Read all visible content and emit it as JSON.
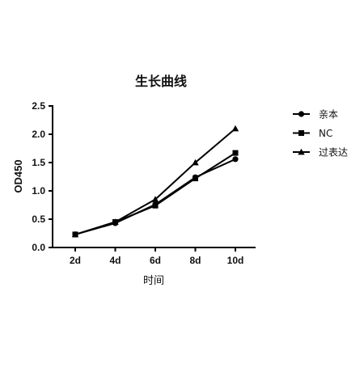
{
  "chart_data": {
    "type": "line",
    "title": "生长曲线",
    "xlabel": "时间",
    "ylabel": "OD450",
    "categories": [
      "2d",
      "4d",
      "6d",
      "8d",
      "10d"
    ],
    "ylim": [
      0,
      2.5
    ],
    "yticks": [
      "0.0",
      "0.5",
      "1.0",
      "1.5",
      "2.0",
      "2.5"
    ],
    "grid": false,
    "legend_position": "right",
    "series": [
      {
        "name": "亲本",
        "marker": "circle",
        "values": [
          0.23,
          0.43,
          0.76,
          1.24,
          1.56
        ]
      },
      {
        "name": "NC",
        "marker": "square",
        "values": [
          0.23,
          0.45,
          0.74,
          1.22,
          1.67
        ]
      },
      {
        "name": "过表达",
        "marker": "triangle",
        "values": [
          0.23,
          0.45,
          0.85,
          1.5,
          2.1
        ]
      }
    ]
  }
}
